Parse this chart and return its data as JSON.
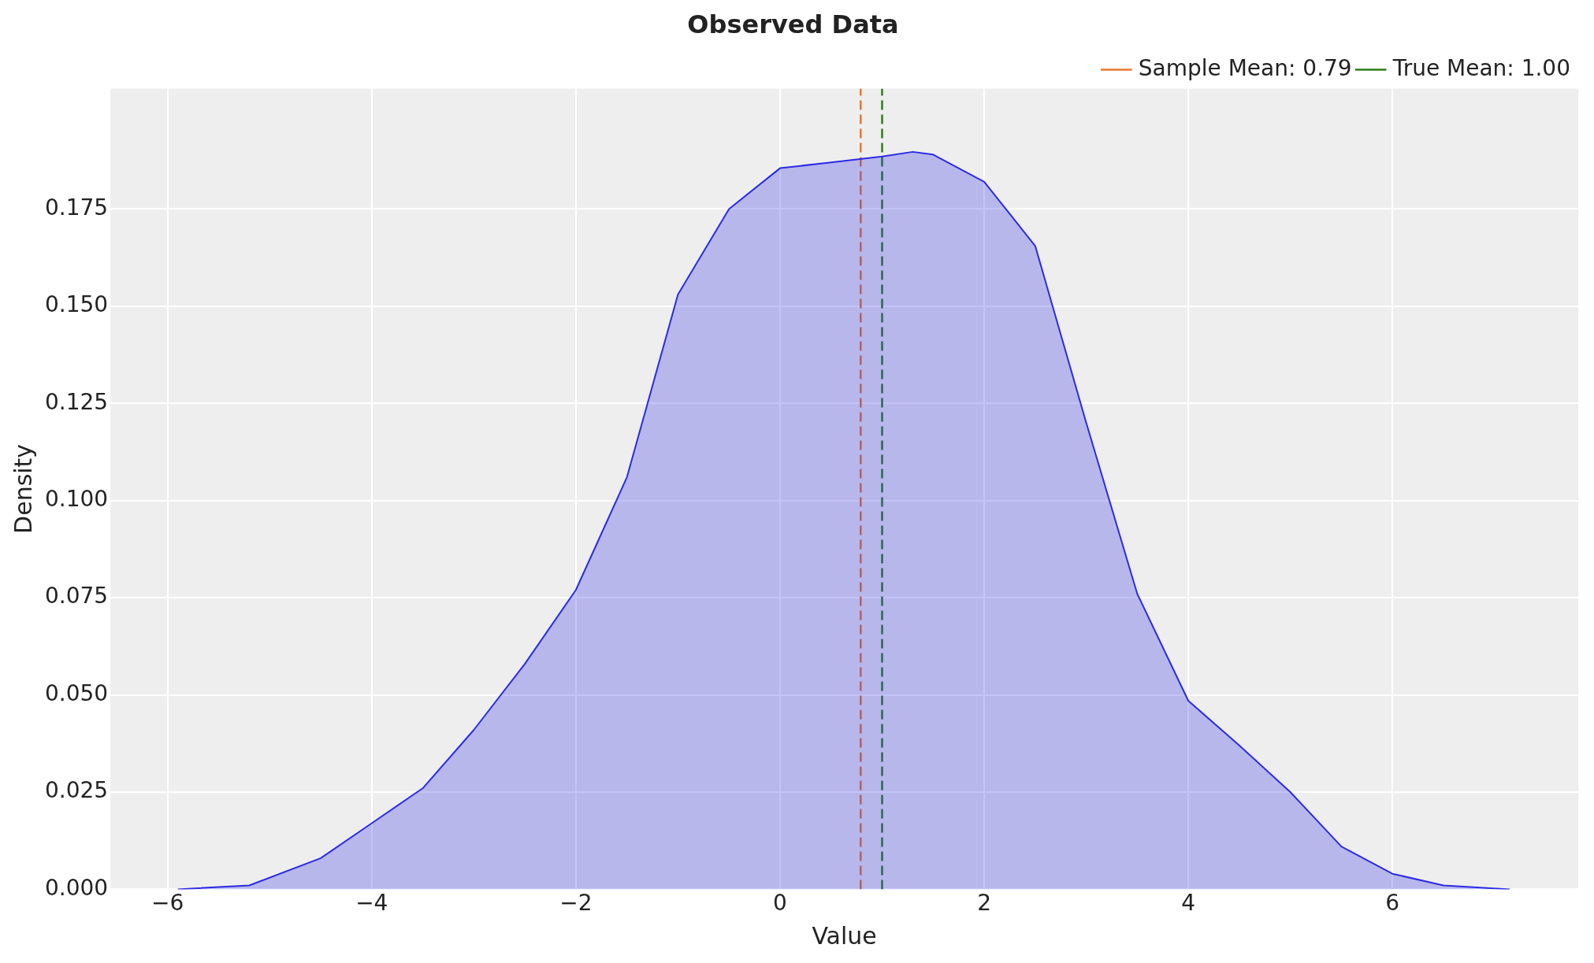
{
  "chart_data": {
    "type": "area",
    "title": "Observed Data",
    "xlabel": "Value",
    "ylabel": "Density",
    "x": [
      -5.9,
      -5.2,
      -4.5,
      -4,
      -3.5,
      -3,
      -2.5,
      -2,
      -1.5,
      -1,
      -0.5,
      0,
      0.5,
      1,
      1.3,
      1.5,
      2,
      2.5,
      3,
      3.5,
      4,
      4.5,
      5,
      5.5,
      6,
      6.5,
      7.15
    ],
    "series": [
      {
        "color": "#2b2be6",
        "values": [
          0,
          0.001,
          0.008,
          0.017,
          0.026,
          0.041,
          0.058,
          0.077,
          0.106,
          0.153,
          0.175,
          0.1855,
          0.187,
          0.1885,
          0.1897,
          0.189,
          0.182,
          0.1655,
          0.12,
          0.076,
          0.0485,
          0.037,
          0.025,
          0.011,
          0.004,
          0.001,
          0
        ]
      }
    ],
    "xlim": [
      -6.56,
      7.82
    ],
    "ylim": [
      0,
      0.206
    ],
    "xticks": [
      {
        "value": -6,
        "label": "−6"
      },
      {
        "value": -4,
        "label": "−4"
      },
      {
        "value": -2,
        "label": "−2"
      },
      0,
      2,
      4,
      6
    ],
    "yticks": [
      {
        "value": 0,
        "label": "0.000"
      },
      {
        "value": 0.025,
        "label": "0.025"
      },
      {
        "value": 0.05,
        "label": "0.050"
      },
      {
        "value": 0.075,
        "label": "0.075"
      },
      {
        "value": 0.1,
        "label": "0.100"
      },
      {
        "value": 0.125,
        "label": "0.125"
      },
      {
        "value": 0.15,
        "label": "0.150"
      },
      {
        "value": 0.175,
        "label": "0.175"
      }
    ],
    "ref_lines": [
      {
        "axis": "x",
        "value": 0.79,
        "label": "Sample Mean: 0.79",
        "color": "#e8772e",
        "line_style": "dashed"
      },
      {
        "axis": "x",
        "value": 1.0,
        "label": "True Mean: 1.00",
        "color": "#2e7d18",
        "line_style": "dashed"
      }
    ],
    "grid": true,
    "legend": "top right"
  }
}
